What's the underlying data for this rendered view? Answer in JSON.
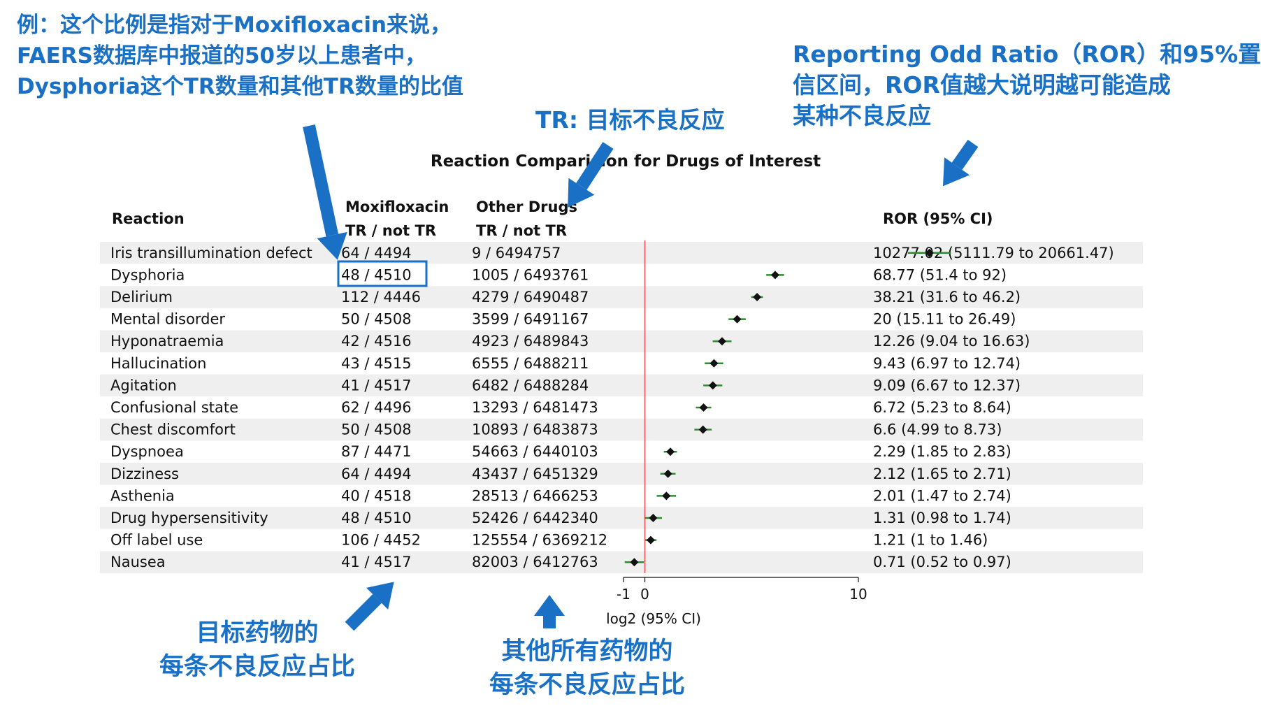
{
  "annotations": {
    "top_left": [
      "例：这个比例是指对于Moxifloxacin来说，",
      "FAERS数据库中报道的50岁以上患者中，",
      "Dysphoria这个TR数量和其他TR数量的比值"
    ],
    "top_middle": "TR: 目标不良反应",
    "top_right": [
      "Reporting Odd Ratio（ROR）和95%置",
      "信区间，ROR值越大说明越可能造成",
      "某种不良反应"
    ],
    "bottom_left": [
      "目标药物的",
      "每条不良反应占比"
    ],
    "bottom_middle": [
      "其他所有药物的",
      "每条不良反应占比"
    ],
    "arrow_color": "#1a70c4"
  },
  "chart_data": {
    "type": "forest",
    "title": "Reaction Comparision for Drugs of Interest",
    "headers": {
      "reaction": "Reaction",
      "drug_line1": "Moxifloxacin",
      "drug_line2": "TR / not TR",
      "other_line1": "Other Drugs",
      "other_line2": "TR / not TR",
      "ror": "ROR (95% CI)"
    },
    "xlabel": "log2 (95% CI)",
    "xlim": [
      -1,
      10
    ],
    "xticks": [
      -1,
      0,
      10
    ],
    "xtick_labels": [
      "-1",
      "0",
      "10"
    ],
    "reference_line": 0,
    "reference_line_color": "#e8504f",
    "ci_line_color": "#2e8b2e",
    "row_band_color": "#efefef",
    "highlighted_row": "Dysphoria",
    "highlight_color": "#1a70c4",
    "rows": [
      {
        "reaction": "Iris transillumination defect",
        "drug": "64 / 4494",
        "other": "9 / 6494757",
        "ror": 10277.02,
        "lower": 5111.79,
        "upper": 20661.47,
        "ror_label": "10277.02 (5111.79 to 20661.47)"
      },
      {
        "reaction": "Dysphoria",
        "drug": "48 / 4510",
        "other": "1005 / 6493761",
        "ror": 68.77,
        "lower": 51.4,
        "upper": 92,
        "ror_label": "68.77 (51.4 to 92)"
      },
      {
        "reaction": "Delirium",
        "drug": "112 / 4446",
        "other": "4279 / 6490487",
        "ror": 38.21,
        "lower": 31.6,
        "upper": 46.2,
        "ror_label": "38.21 (31.6 to 46.2)"
      },
      {
        "reaction": "Mental disorder",
        "drug": "50 / 4508",
        "other": "3599 / 6491167",
        "ror": 20,
        "lower": 15.11,
        "upper": 26.49,
        "ror_label": "20 (15.11 to 26.49)"
      },
      {
        "reaction": "Hyponatraemia",
        "drug": "42 / 4516",
        "other": "4923 / 6489843",
        "ror": 12.26,
        "lower": 9.04,
        "upper": 16.63,
        "ror_label": "12.26 (9.04 to 16.63)"
      },
      {
        "reaction": "Hallucination",
        "drug": "43 / 4515",
        "other": "6555 / 6488211",
        "ror": 9.43,
        "lower": 6.97,
        "upper": 12.74,
        "ror_label": "9.43 (6.97 to 12.74)"
      },
      {
        "reaction": "Agitation",
        "drug": "41 / 4517",
        "other": "6482 / 6488284",
        "ror": 9.09,
        "lower": 6.67,
        "upper": 12.37,
        "ror_label": "9.09 (6.67 to 12.37)"
      },
      {
        "reaction": "Confusional state",
        "drug": "62 / 4496",
        "other": "13293 / 6481473",
        "ror": 6.72,
        "lower": 5.23,
        "upper": 8.64,
        "ror_label": "6.72 (5.23 to 8.64)"
      },
      {
        "reaction": "Chest discomfort",
        "drug": "50 / 4508",
        "other": "10893 / 6483873",
        "ror": 6.6,
        "lower": 4.99,
        "upper": 8.73,
        "ror_label": "6.6 (4.99 to 8.73)"
      },
      {
        "reaction": "Dyspnoea",
        "drug": "87 / 4471",
        "other": "54663 / 6440103",
        "ror": 2.29,
        "lower": 1.85,
        "upper": 2.83,
        "ror_label": "2.29 (1.85 to 2.83)"
      },
      {
        "reaction": "Dizziness",
        "drug": "64 / 4494",
        "other": "43437 / 6451329",
        "ror": 2.12,
        "lower": 1.65,
        "upper": 2.71,
        "ror_label": "2.12 (1.65 to 2.71)"
      },
      {
        "reaction": "Asthenia",
        "drug": "40 / 4518",
        "other": "28513 / 6466253",
        "ror": 2.01,
        "lower": 1.47,
        "upper": 2.74,
        "ror_label": "2.01 (1.47 to 2.74)"
      },
      {
        "reaction": "Drug hypersensitivity",
        "drug": "48 / 4510",
        "other": "52426 / 6442340",
        "ror": 1.31,
        "lower": 0.98,
        "upper": 1.74,
        "ror_label": "1.31 (0.98 to 1.74)"
      },
      {
        "reaction": "Off label use",
        "drug": "106 / 4452",
        "other": "125554 / 6369212",
        "ror": 1.21,
        "lower": 1,
        "upper": 1.46,
        "ror_label": "1.21 (1 to 1.46)"
      },
      {
        "reaction": "Nausea",
        "drug": "41 / 4517",
        "other": "82003 / 6412763",
        "ror": 0.71,
        "lower": 0.52,
        "upper": 0.97,
        "ror_label": "0.71 (0.52 to 0.97)"
      }
    ]
  }
}
